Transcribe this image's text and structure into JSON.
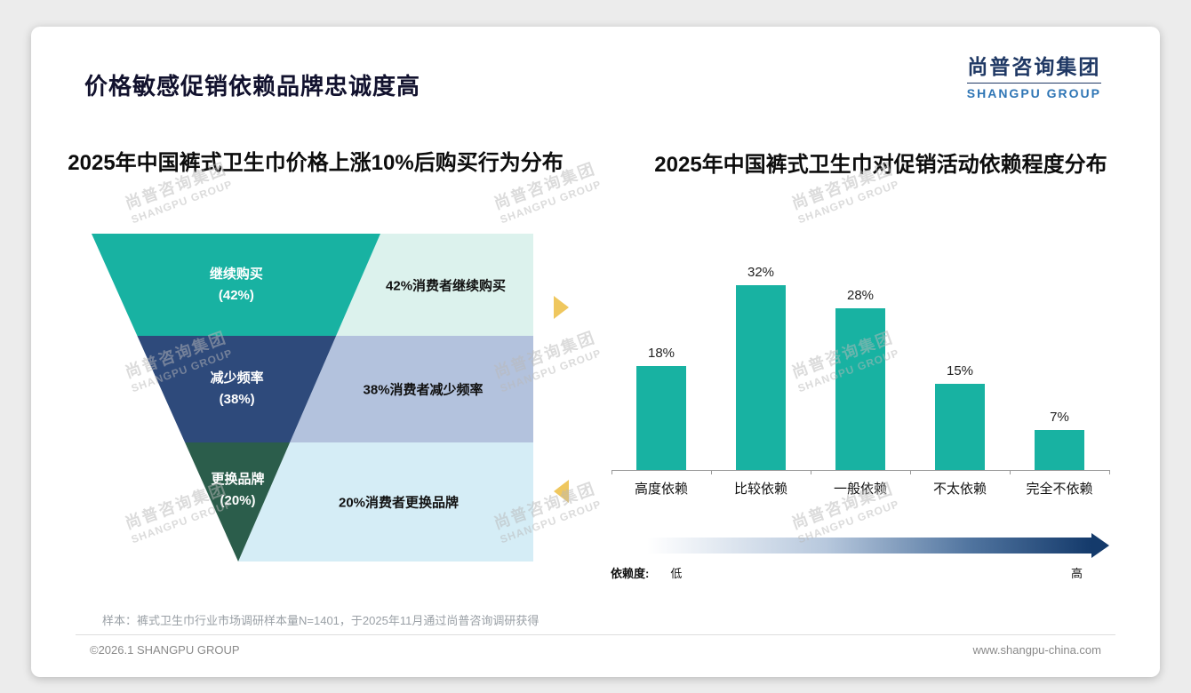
{
  "page": {
    "title": "价格敏感促销依赖品牌忠诚度高",
    "logo": {
      "cn": "尚普咨询集团",
      "en": "SHANGPU GROUP"
    },
    "watermark": {
      "cn": "尚普咨询集团",
      "en": "SHANGPU GROUP"
    },
    "footnote": "样本：裤式卫生巾行业市场调研样本量N=1401，于2025年11月通过尚普咨询调研获得",
    "copyright": "©2026.1 SHANGPU GROUP",
    "website": "www.shangpu-china.com"
  },
  "decor": {
    "arrow_color": "#EFC75E",
    "gradient_start": "#ffffff",
    "gradient_end": "#143a6b"
  },
  "chart_data": [
    {
      "type": "funnel",
      "title": "2025年中国裤式卫生巾价格上涨10%后购买行为分布",
      "segments": [
        {
          "label": "继续购买",
          "value": 42,
          "value_label": "(42%)",
          "desc": "42%消费者继续购买",
          "color": "#18B2A2",
          "desc_bg": "#DCF2ED"
        },
        {
          "label": "减少频率",
          "value": 38,
          "value_label": "(38%)",
          "desc": "38%消费者减少频率",
          "color": "#2E4A7B",
          "desc_bg": "#B3C2DD"
        },
        {
          "label": "更换品牌",
          "value": 20,
          "value_label": "(20%)",
          "desc": "20%消费者更换品牌",
          "color": "#2B5D4B",
          "desc_bg": "#D5EDF6"
        }
      ]
    },
    {
      "type": "bar",
      "title": "2025年中国裤式卫生巾对促销活动依赖程度分布",
      "categories": [
        "高度依赖",
        "比较依赖",
        "一般依赖",
        "不太依赖",
        "完全不依赖"
      ],
      "values": [
        18,
        32,
        28,
        15,
        7
      ],
      "value_labels": [
        "18%",
        "32%",
        "28%",
        "15%",
        "7%"
      ],
      "bar_color": "#18B2A2",
      "ylim": [
        0,
        35
      ],
      "grid": false,
      "legend_axis": {
        "label": "依赖度:",
        "low": "低",
        "high": "高"
      }
    }
  ]
}
